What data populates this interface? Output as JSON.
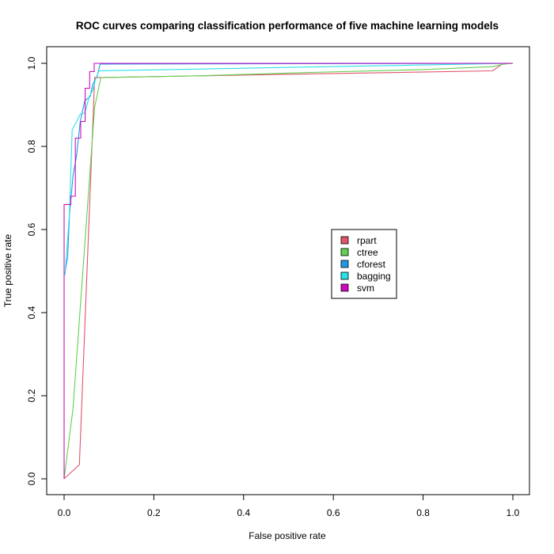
{
  "chart_data": {
    "type": "line",
    "title": "ROC curves comparing classification performance of five machine learning models",
    "xlabel": "False positive rate",
    "ylabel": "True positive rate",
    "xlim": [
      0,
      1
    ],
    "ylim": [
      0,
      1
    ],
    "xticks": [
      "0.0",
      "0.2",
      "0.4",
      "0.6",
      "0.8",
      "1.0"
    ],
    "yticks": [
      "0.0",
      "0.2",
      "0.4",
      "0.6",
      "0.8",
      "1.0"
    ],
    "grid": false,
    "legend_position": "center-right",
    "series": [
      {
        "name": "rpart",
        "color": "#DF536B",
        "x": [
          0,
          0.034,
          0.068,
          0.085,
          0.955,
          0.976,
          1.0
        ],
        "y": [
          0,
          0.034,
          0.966,
          0.966,
          0.982,
          0.998,
          1.0
        ]
      },
      {
        "name": "ctree",
        "color": "#61D04F",
        "x": [
          0,
          0.02,
          0.068,
          0.082,
          0.3,
          0.55,
          0.8,
          0.955,
          0.98,
          1.0
        ],
        "y": [
          0,
          0.17,
          0.895,
          0.966,
          0.97,
          0.978,
          0.985,
          0.992,
          0.998,
          1.0
        ]
      },
      {
        "name": "cforest",
        "color": "#2297E6",
        "x": [
          0.002,
          0.008,
          0.012,
          0.02,
          0.028,
          0.036,
          0.046,
          0.058,
          0.064,
          0.074,
          0.08,
          1.0
        ],
        "y": [
          0.495,
          0.535,
          0.635,
          0.73,
          0.78,
          0.86,
          0.91,
          0.92,
          0.95,
          0.97,
          0.998,
          1.0
        ]
      },
      {
        "name": "bagging",
        "color": "#28E2E5",
        "x": [
          0.002,
          0.006,
          0.012,
          0.018,
          0.028,
          0.036,
          0.046,
          0.056,
          0.064,
          0.07,
          0.078,
          1.0
        ],
        "y": [
          0.49,
          0.55,
          0.64,
          0.84,
          0.86,
          0.878,
          0.88,
          0.92,
          0.935,
          0.962,
          0.982,
          1.0
        ]
      },
      {
        "name": "svm",
        "color": "#CD0BBC",
        "x": [
          0,
          0,
          0.015,
          0.015,
          0.025,
          0.025,
          0.037,
          0.037,
          0.047,
          0.047,
          0.057,
          0.057,
          0.067,
          0.067,
          0.08,
          1.0
        ],
        "y": [
          0,
          0.66,
          0.66,
          0.68,
          0.68,
          0.82,
          0.82,
          0.86,
          0.86,
          0.94,
          0.94,
          0.98,
          0.98,
          1.0,
          1.0,
          1.0
        ]
      }
    ]
  }
}
